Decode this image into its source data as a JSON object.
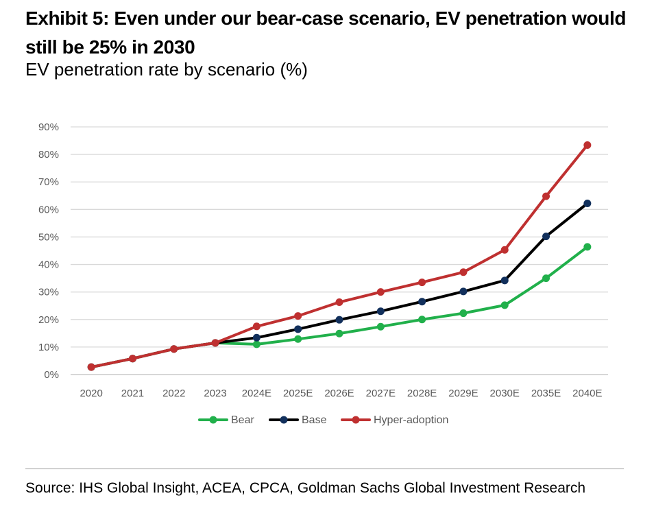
{
  "header": {
    "title": "Exhibit 5: Even under our bear-case scenario, EV penetration would still be 25% in 2030",
    "subtitle": "EV penetration rate by scenario (%)"
  },
  "footer": {
    "source": "Source: IHS Global Insight, ACEA, CPCA, Goldman Sachs Global Investment Research"
  },
  "colors": {
    "bear": "#21b04b",
    "base_line": "#000000",
    "base_marker": "#12305c",
    "hyper": "#bf3030",
    "grid": "#d9d9d9",
    "axis_text": "#595959"
  },
  "chart_data": {
    "type": "line",
    "title": "",
    "xlabel": "",
    "ylabel": "",
    "ylim": [
      0,
      90
    ],
    "y_ticks": [
      0,
      10,
      20,
      30,
      40,
      50,
      60,
      70,
      80,
      90
    ],
    "y_tick_labels": [
      "0%",
      "10%",
      "20%",
      "30%",
      "40%",
      "50%",
      "60%",
      "70%",
      "80%",
      "90%"
    ],
    "grid": "horizontal",
    "legend_position": "bottom",
    "categories": [
      "2020",
      "2021",
      "2022",
      "2023",
      "2024E",
      "2025E",
      "2026E",
      "2027E",
      "2028E",
      "2029E",
      "2030E",
      "2035E",
      "2040E"
    ],
    "series": [
      {
        "name": "Bear",
        "values": [
          2.7,
          5.8,
          9.3,
          11.5,
          11.0,
          12.9,
          14.9,
          17.4,
          20.0,
          22.3,
          25.2,
          35.0,
          46.4
        ]
      },
      {
        "name": "Base",
        "values": [
          2.7,
          5.8,
          9.3,
          11.5,
          13.4,
          16.5,
          19.9,
          23.0,
          26.5,
          30.2,
          34.2,
          50.2,
          62.2
        ]
      },
      {
        "name": "Hyper-adoption",
        "values": [
          2.7,
          5.8,
          9.3,
          11.5,
          17.5,
          21.3,
          26.3,
          30.0,
          33.5,
          37.2,
          45.3,
          64.8,
          83.4
        ]
      }
    ]
  }
}
